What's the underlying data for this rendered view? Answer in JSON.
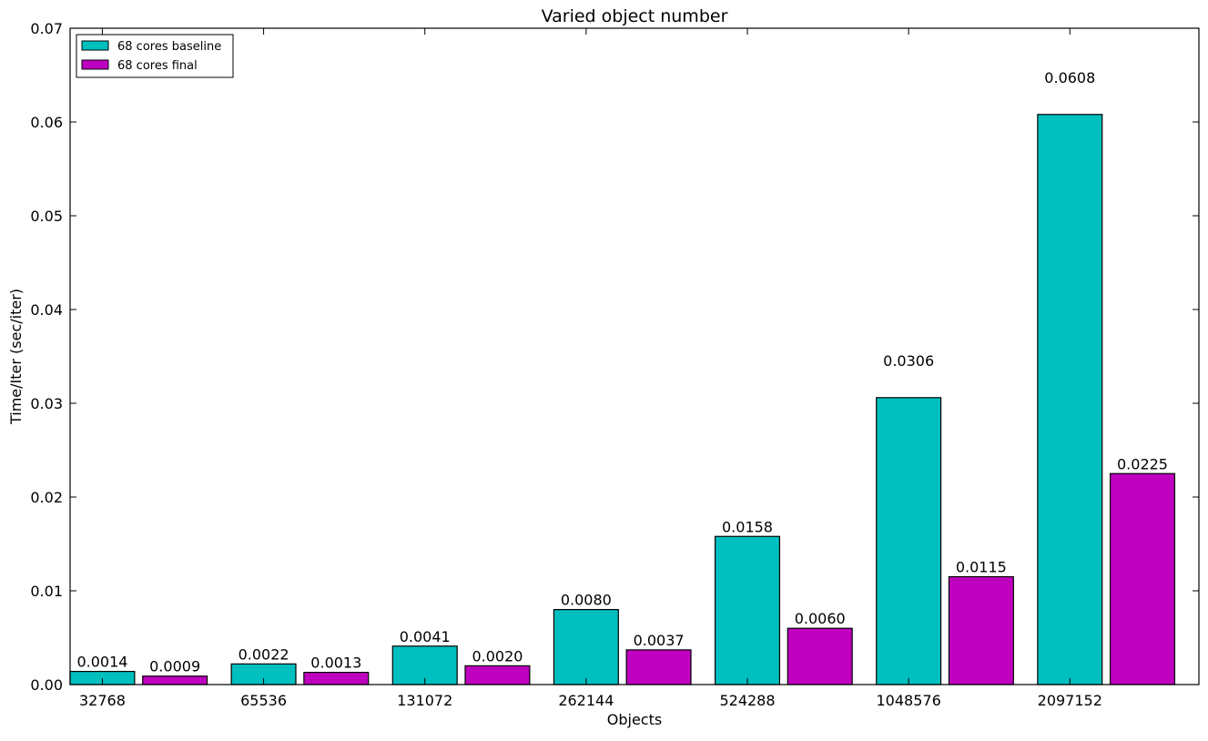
{
  "chart_data": {
    "type": "bar",
    "title": "Varied object number",
    "xlabel": "Objects",
    "ylabel": "Time/Iter (sec/iter)",
    "categories": [
      "32768",
      "65536",
      "131072",
      "262144",
      "524288",
      "1048576",
      "2097152"
    ],
    "series": [
      {
        "name": "68 cores baseline",
        "color": "#00bfbf",
        "values": [
          0.0014,
          0.0022,
          0.0041,
          0.008,
          0.0158,
          0.0306,
          0.0608
        ],
        "labels": [
          "0.0014",
          "0.0022",
          "0.0041",
          "0.0080",
          "0.0158",
          "0.0306",
          "0.0608"
        ]
      },
      {
        "name": "68 cores final",
        "color": "#bf00bf",
        "values": [
          0.0009,
          0.0013,
          0.002,
          0.0037,
          0.006,
          0.0115,
          0.0225
        ],
        "labels": [
          "0.0009",
          "0.0013",
          "0.0020",
          "0.0037",
          "0.0060",
          "0.0115",
          "0.0225"
        ]
      }
    ],
    "ylim": [
      0,
      0.07
    ],
    "yticks": [
      0.0,
      0.01,
      0.02,
      0.03,
      0.04,
      0.05,
      0.06,
      0.07
    ],
    "ytick_labels": [
      "0.00",
      "0.01",
      "0.02",
      "0.03",
      "0.04",
      "0.05",
      "0.06",
      "0.07"
    ],
    "grid": false,
    "legend_position": "top-left"
  }
}
